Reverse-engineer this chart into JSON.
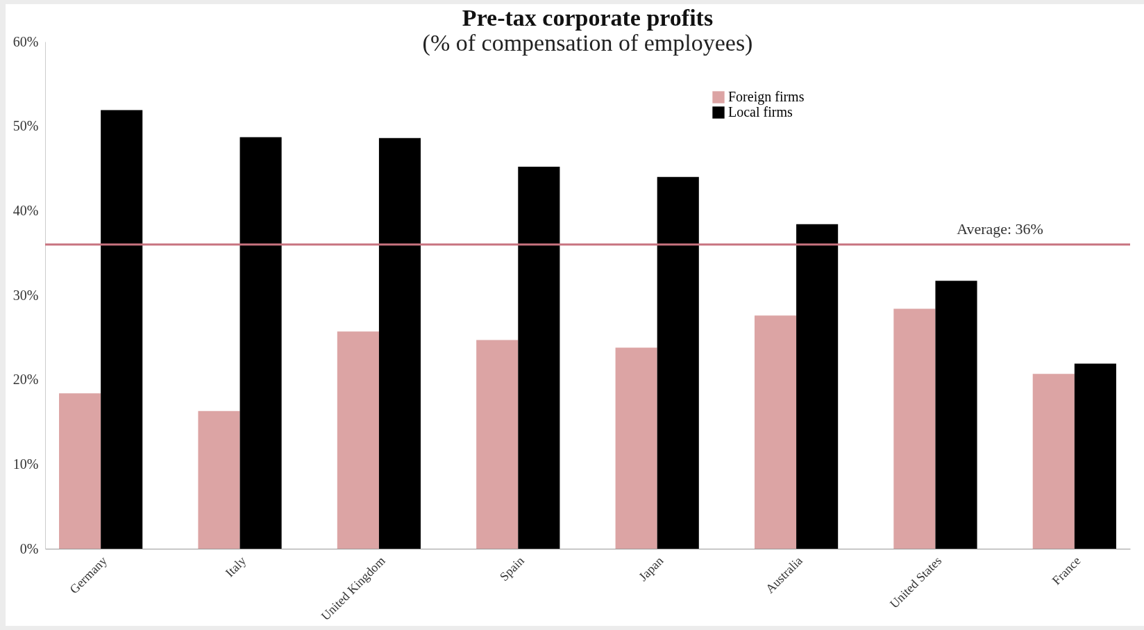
{
  "chart_data": {
    "type": "bar",
    "title": "Pre-tax corporate profits",
    "subtitle": "(% of compensation of employees)",
    "categories": [
      "Germany",
      "Italy",
      "United Kingdom",
      "Spain",
      "Japan",
      "Australia",
      "United States",
      "France"
    ],
    "series": [
      {
        "name": "Foreign firms",
        "color": "#dca4a4",
        "values": [
          18.4,
          16.3,
          25.7,
          24.7,
          23.8,
          27.6,
          28.4,
          20.7
        ]
      },
      {
        "name": "Local firms",
        "color": "#000000",
        "values": [
          51.9,
          48.7,
          48.6,
          45.2,
          44.0,
          38.4,
          31.7,
          21.9
        ]
      }
    ],
    "ylim": [
      0,
      60
    ],
    "yticks": [
      {
        "value": 0,
        "label": "0%"
      },
      {
        "value": 10,
        "label": "10%"
      },
      {
        "value": 20,
        "label": "20%"
      },
      {
        "value": 30,
        "label": "30%"
      },
      {
        "value": 40,
        "label": "40%"
      },
      {
        "value": 50,
        "label": "50%"
      },
      {
        "value": 60,
        "label": "60%"
      }
    ],
    "ref_lines": [
      {
        "axis": "y",
        "value": 36,
        "label": "Average: 36%",
        "color": "#c8737f"
      }
    ],
    "legend": "top right"
  }
}
